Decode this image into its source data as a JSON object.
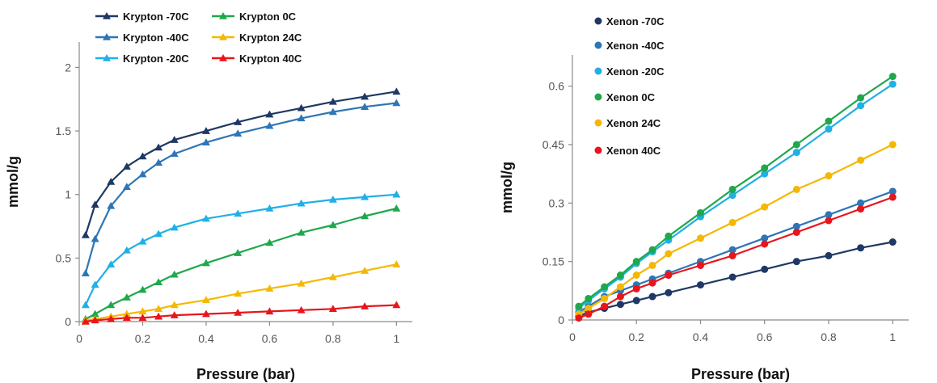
{
  "colors": {
    "dark_navy": "#1f3864",
    "blue": "#2e75b6",
    "light_blue": "#1fb0e6",
    "green": "#1fa84b",
    "yellow": "#f5b800",
    "red": "#e8151b"
  },
  "chart_data": [
    {
      "type": "line",
      "marker": "triangle",
      "xlabel": "Pressure (bar)",
      "ylabel": "mmol/g",
      "xlim": [
        0,
        1.05
      ],
      "ylim": [
        0,
        2.2
      ],
      "xticks": [
        0,
        0.2,
        0.4,
        0.6,
        0.8,
        1
      ],
      "xtick_labels": [
        "0",
        "0.2",
        "0.4",
        "0.6",
        "0.8",
        "1"
      ],
      "yticks": [
        0,
        0.5,
        1,
        1.5,
        2
      ],
      "ytick_labels": [
        "0",
        "0.5",
        "1",
        "1.5",
        "2"
      ],
      "grid": false,
      "legend_position": "top-left",
      "x": [
        0.02,
        0.05,
        0.1,
        0.15,
        0.2,
        0.25,
        0.3,
        0.4,
        0.5,
        0.6,
        0.7,
        0.8,
        0.9,
        1.0
      ],
      "series": [
        {
          "name": "Krypton -70C",
          "color": "#1f3864",
          "values": [
            0.68,
            0.92,
            1.1,
            1.22,
            1.3,
            1.37,
            1.43,
            1.5,
            1.57,
            1.63,
            1.68,
            1.73,
            1.77,
            1.81
          ]
        },
        {
          "name": "Krypton -40C",
          "color": "#2e75b6",
          "values": [
            0.38,
            0.65,
            0.91,
            1.06,
            1.16,
            1.25,
            1.32,
            1.41,
            1.48,
            1.54,
            1.6,
            1.65,
            1.69,
            1.72
          ]
        },
        {
          "name": "Krypton -20C",
          "color": "#1fb0e6",
          "values": [
            0.13,
            0.29,
            0.45,
            0.56,
            0.63,
            0.69,
            0.74,
            0.81,
            0.85,
            0.89,
            0.93,
            0.96,
            0.98,
            1.0
          ]
        },
        {
          "name": "Krypton 0C",
          "color": "#1fa84b",
          "values": [
            0.02,
            0.06,
            0.13,
            0.19,
            0.25,
            0.31,
            0.37,
            0.46,
            0.54,
            0.62,
            0.7,
            0.76,
            0.83,
            0.89
          ]
        },
        {
          "name": "Krypton 24C",
          "color": "#f5b800",
          "values": [
            0.01,
            0.02,
            0.04,
            0.06,
            0.08,
            0.1,
            0.13,
            0.17,
            0.22,
            0.26,
            0.3,
            0.35,
            0.4,
            0.45
          ]
        },
        {
          "name": "Krypton 40C",
          "color": "#e8151b",
          "values": [
            0.0,
            0.01,
            0.02,
            0.03,
            0.03,
            0.04,
            0.05,
            0.06,
            0.07,
            0.08,
            0.09,
            0.1,
            0.12,
            0.13
          ]
        }
      ]
    },
    {
      "type": "line",
      "marker": "circle",
      "xlabel": "Pressure (bar)",
      "ylabel": "mmol/g",
      "xlim": [
        0,
        1.05
      ],
      "ylim": [
        0,
        0.68
      ],
      "xticks": [
        0,
        0.2,
        0.4,
        0.6,
        0.8,
        1
      ],
      "xtick_labels": [
        "0",
        "0.2",
        "0.4",
        "0.6",
        "0.8",
        "1"
      ],
      "yticks": [
        0,
        0.15,
        0.3,
        0.45,
        0.6
      ],
      "ytick_labels": [
        "0",
        "0.15",
        "0.3",
        "0.45",
        "0.6"
      ],
      "grid": false,
      "legend_position": "top-left",
      "x": [
        0.02,
        0.05,
        0.1,
        0.15,
        0.2,
        0.25,
        0.3,
        0.4,
        0.5,
        0.6,
        0.7,
        0.8,
        0.9,
        1.0
      ],
      "series": [
        {
          "name": "Xenon -70C",
          "color": "#1f3864",
          "values": [
            0.01,
            0.02,
            0.03,
            0.04,
            0.05,
            0.06,
            0.07,
            0.09,
            0.11,
            0.13,
            0.15,
            0.165,
            0.185,
            0.2
          ]
        },
        {
          "name": "Xenon -40C",
          "color": "#2e75b6",
          "values": [
            0.02,
            0.035,
            0.06,
            0.075,
            0.09,
            0.105,
            0.12,
            0.15,
            0.18,
            0.21,
            0.24,
            0.27,
            0.3,
            0.33
          ]
        },
        {
          "name": "Xenon -20C",
          "color": "#1fb0e6",
          "values": [
            0.03,
            0.05,
            0.08,
            0.11,
            0.145,
            0.175,
            0.205,
            0.265,
            0.32,
            0.375,
            0.43,
            0.49,
            0.55,
            0.605
          ]
        },
        {
          "name": "Xenon 0C",
          "color": "#1fa84b",
          "values": [
            0.035,
            0.055,
            0.085,
            0.115,
            0.15,
            0.18,
            0.215,
            0.275,
            0.335,
            0.39,
            0.45,
            0.51,
            0.57,
            0.625
          ]
        },
        {
          "name": "Xenon 24C",
          "color": "#f5b800",
          "values": [
            0.015,
            0.03,
            0.055,
            0.085,
            0.115,
            0.14,
            0.17,
            0.21,
            0.25,
            0.29,
            0.335,
            0.37,
            0.41,
            0.45
          ]
        },
        {
          "name": "Xenon 40C",
          "color": "#e8151b",
          "values": [
            0.005,
            0.015,
            0.035,
            0.06,
            0.08,
            0.095,
            0.115,
            0.14,
            0.165,
            0.195,
            0.225,
            0.255,
            0.285,
            0.315
          ]
        }
      ]
    }
  ]
}
